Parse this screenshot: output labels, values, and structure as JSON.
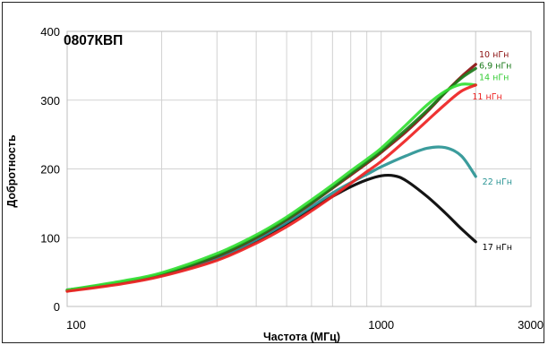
{
  "chart_data": {
    "type": "line",
    "title": "0807КВП",
    "xlabel": "Частота (МГц)",
    "ylabel": "Добротность",
    "x_scale": "log",
    "xlim": [
      100,
      3000
    ],
    "ylim": [
      0,
      400
    ],
    "x_ticks": [
      "100",
      "1000",
      "3000"
    ],
    "y_ticks": [
      "0",
      "100",
      "200",
      "300",
      "400"
    ],
    "grid": true,
    "series": [
      {
        "name": "17 нГн",
        "color": "#000000",
        "x": [
          100,
          150,
          200,
          300,
          400,
          500,
          600,
          700,
          800,
          900,
          1000,
          1100,
          1200,
          1400,
          1600,
          1800,
          2000
        ],
        "y": [
          24,
          35,
          46,
          69,
          95,
          120,
          142,
          160,
          174,
          184,
          190,
          190,
          183,
          160,
          136,
          113,
          94
        ]
      },
      {
        "name": "22 нГн",
        "color": "#2a9494",
        "x": [
          100,
          150,
          200,
          300,
          400,
          500,
          600,
          700,
          800,
          900,
          1000,
          1200,
          1400,
          1600,
          1800,
          2000
        ],
        "y": [
          23,
          35,
          45,
          70,
          97,
          122,
          145,
          165,
          180,
          192,
          203,
          219,
          230,
          231,
          219,
          189
        ]
      },
      {
        "name": "10 нГн",
        "color": "#8b1010",
        "x": [
          100,
          150,
          200,
          300,
          400,
          500,
          600,
          700,
          800,
          900,
          1000,
          1200,
          1400,
          1600,
          1800,
          2000
        ],
        "y": [
          23,
          35,
          47,
          73,
          100,
          126,
          150,
          172,
          191,
          208,
          224,
          254,
          283,
          311,
          334,
          352
        ]
      },
      {
        "name": "6,9 нГн",
        "color": "#1b7a1b",
        "x": [
          100,
          150,
          200,
          300,
          400,
          500,
          600,
          700,
          800,
          900,
          1000,
          1200,
          1400,
          1600,
          1800,
          2000
        ],
        "y": [
          23,
          35,
          47,
          74,
          101,
          127,
          151,
          173,
          193,
          210,
          226,
          257,
          285,
          311,
          332,
          346
        ]
      },
      {
        "name": "14 нГн",
        "color": "#33e033",
        "x": [
          100,
          150,
          200,
          300,
          400,
          500,
          600,
          700,
          800,
          900,
          1000,
          1200,
          1400,
          1600,
          1800,
          2000
        ],
        "y": [
          24,
          37,
          49,
          77,
          104,
          130,
          155,
          177,
          197,
          214,
          230,
          264,
          293,
          313,
          323,
          322
        ]
      },
      {
        "name": "11 нГн",
        "color": "#ee2222",
        "x": [
          100,
          150,
          200,
          300,
          400,
          500,
          600,
          700,
          800,
          900,
          1000,
          1200,
          1400,
          1600,
          1800,
          2000
        ],
        "y": [
          22,
          33,
          44,
          67,
          92,
          116,
          139,
          160,
          179,
          196,
          211,
          242,
          270,
          294,
          313,
          322
        ]
      }
    ],
    "series_labels": [
      {
        "series": "10 нГн",
        "text": "10 нГн",
        "color": "#8b1010",
        "x": 2050,
        "y": 366
      },
      {
        "series": "6,9 нГн",
        "text": "6,9 нГн",
        "color": "#1b7a1b",
        "x": 2050,
        "y": 350
      },
      {
        "series": "14 нГн",
        "text": "14 нГн",
        "color": "#33cc33",
        "x": 2050,
        "y": 333
      },
      {
        "series": "11 нГн",
        "text": "11 нГн",
        "color": "#ee2222",
        "x": 1950,
        "y": 305
      },
      {
        "series": "22 нГн",
        "text": "22 нГн",
        "color": "#2a9494",
        "x": 2100,
        "y": 181
      },
      {
        "series": "17 нГн",
        "text": "17 нГн",
        "color": "#000000",
        "x": 2100,
        "y": 86
      }
    ]
  }
}
